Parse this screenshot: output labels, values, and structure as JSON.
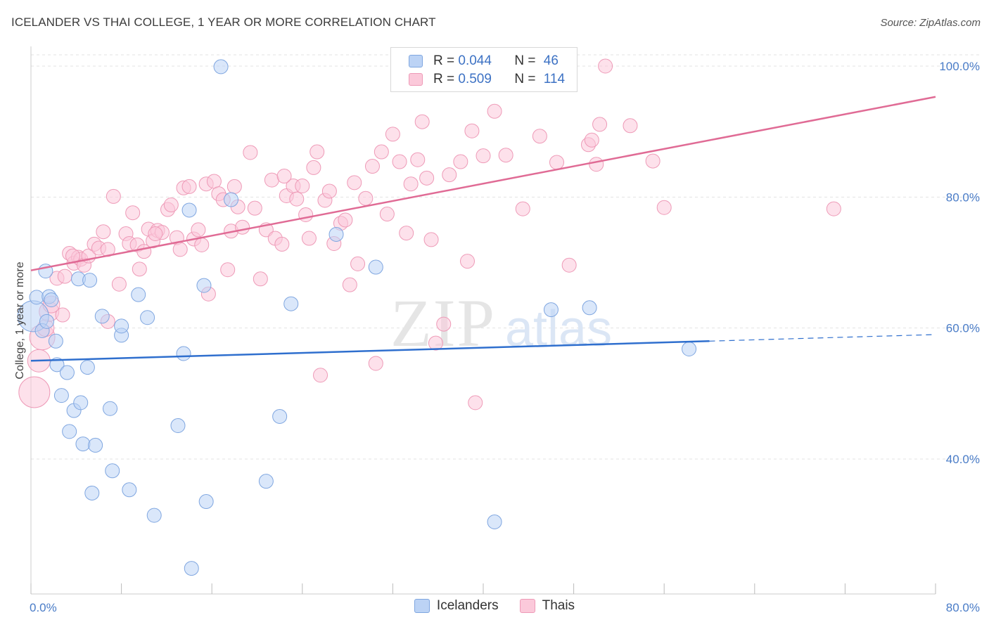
{
  "header": {
    "title": "ICELANDER VS THAI COLLEGE, 1 YEAR OR MORE CORRELATION CHART",
    "source": "Source: ZipAtlas.com"
  },
  "legend": {
    "rows": [
      {
        "r_label": "R = ",
        "r_value": "0.044",
        "n_label": "N = ",
        "n_value": "46"
      },
      {
        "r_label": "R = ",
        "r_value": "0.509",
        "n_label": "N = ",
        "n_value": "114"
      }
    ],
    "bottom": [
      "Icelanders",
      "Thais"
    ]
  },
  "watermark": {
    "zip": "ZIP",
    "atlas": "atlas"
  },
  "colors": {
    "blue_fill": "#bcd3f5",
    "blue_stroke": "#7fa6e0",
    "blue_line": "#2f6fce",
    "pink_fill": "#fbc9da",
    "pink_stroke": "#ee9ab7",
    "pink_line": "#e06b95",
    "grid": "#e3e3e3",
    "tick_text": "#4a7cc7"
  },
  "chart_data": {
    "type": "scatter",
    "title": "ICELANDER VS THAI COLLEGE, 1 YEAR OR MORE CORRELATION CHART",
    "xlabel": "",
    "ylabel": "College, 1 year or more",
    "xlim": [
      0,
      80
    ],
    "ylim": [
      20,
      100
    ],
    "x_tick_labels": [
      "0.0%",
      "80.0%"
    ],
    "y_tick_labels": [
      "100.0%",
      "80.0%",
      "60.0%",
      "40.0%"
    ],
    "y_ticks": [
      100,
      80,
      60,
      40
    ],
    "series": [
      {
        "name": "Icelanders",
        "r": 0.044,
        "n": 46,
        "trend": {
          "x0": 0,
          "y0": 55.0,
          "x1": 60,
          "y1": 58.0,
          "dash_to_x": 80,
          "dash_y": 59.0
        },
        "points": [
          [
            0.2,
            61.8
          ],
          [
            0.5,
            64.7
          ],
          [
            1.0,
            59.6
          ],
          [
            1.3,
            68.7
          ],
          [
            1.6,
            64.8
          ],
          [
            1.8,
            64.3
          ],
          [
            2.2,
            58.0
          ],
          [
            2.3,
            54.4
          ],
          [
            2.7,
            49.7
          ],
          [
            3.2,
            53.2
          ],
          [
            3.4,
            44.2
          ],
          [
            3.8,
            47.4
          ],
          [
            4.2,
            67.5
          ],
          [
            4.4,
            48.6
          ],
          [
            4.6,
            42.3
          ],
          [
            5.0,
            54.0
          ],
          [
            5.2,
            67.3
          ],
          [
            5.4,
            34.8
          ],
          [
            5.7,
            42.1
          ],
          [
            6.3,
            61.8
          ],
          [
            7.0,
            47.7
          ],
          [
            7.2,
            38.2
          ],
          [
            8.0,
            58.9
          ],
          [
            8.0,
            60.3
          ],
          [
            8.7,
            35.3
          ],
          [
            9.5,
            65.1
          ],
          [
            10.3,
            61.6
          ],
          [
            10.9,
            31.4
          ],
          [
            13.0,
            45.1
          ],
          [
            13.5,
            56.1
          ],
          [
            14.0,
            78.0
          ],
          [
            14.2,
            23.3
          ],
          [
            15.3,
            66.5
          ],
          [
            15.5,
            33.5
          ],
          [
            16.8,
            99.9
          ],
          [
            17.7,
            79.6
          ],
          [
            20.8,
            36.6
          ],
          [
            22.0,
            46.5
          ],
          [
            23.0,
            63.7
          ],
          [
            27.0,
            74.3
          ],
          [
            30.5,
            69.3
          ],
          [
            41.0,
            30.4
          ],
          [
            46.0,
            62.8
          ],
          [
            49.4,
            63.1
          ],
          [
            58.2,
            56.8
          ],
          [
            1.4,
            61.0
          ]
        ],
        "sizes": [
          22,
          10,
          10,
          10,
          10,
          10,
          10,
          10,
          10,
          10,
          10,
          10,
          10,
          10,
          10,
          10,
          10,
          10,
          10,
          10,
          10,
          10,
          10,
          10,
          10,
          10,
          10,
          10,
          10,
          10,
          10,
          10,
          10,
          10,
          10,
          10,
          10,
          10,
          10,
          10,
          10,
          10,
          10,
          10,
          10,
          10
        ]
      },
      {
        "name": "Thais",
        "r": 0.509,
        "n": 114,
        "trend": {
          "x0": 0,
          "y0": 68.8,
          "x1": 80,
          "y1": 95.3
        },
        "points": [
          [
            0.3,
            50.2
          ],
          [
            0.7,
            55.0
          ],
          [
            1.0,
            58.6
          ],
          [
            1.3,
            60.0
          ],
          [
            1.6,
            62.5
          ],
          [
            1.8,
            63.6
          ],
          [
            2.3,
            67.6
          ],
          [
            2.8,
            62.0
          ],
          [
            3.0,
            67.9
          ],
          [
            3.4,
            71.4
          ],
          [
            3.8,
            69.9
          ],
          [
            4.2,
            70.8
          ],
          [
            4.4,
            70.5
          ],
          [
            4.7,
            69.6
          ],
          [
            5.1,
            71.0
          ],
          [
            5.6,
            72.8
          ],
          [
            6.0,
            72.2
          ],
          [
            6.4,
            74.7
          ],
          [
            6.8,
            72.0
          ],
          [
            7.3,
            80.1
          ],
          [
            7.8,
            66.7
          ],
          [
            8.4,
            74.4
          ],
          [
            8.7,
            72.9
          ],
          [
            9.0,
            77.6
          ],
          [
            9.4,
            72.7
          ],
          [
            9.6,
            69.0
          ],
          [
            10.0,
            71.7
          ],
          [
            10.4,
            75.1
          ],
          [
            10.8,
            73.3
          ],
          [
            11.2,
            74.9
          ],
          [
            11.6,
            74.6
          ],
          [
            12.1,
            78.1
          ],
          [
            12.4,
            78.8
          ],
          [
            12.9,
            73.8
          ],
          [
            13.2,
            72.0
          ],
          [
            13.5,
            81.4
          ],
          [
            14.0,
            81.6
          ],
          [
            14.4,
            73.6
          ],
          [
            14.8,
            75.0
          ],
          [
            15.1,
            72.7
          ],
          [
            15.5,
            82.0
          ],
          [
            15.7,
            65.2
          ],
          [
            16.2,
            82.4
          ],
          [
            16.6,
            80.5
          ],
          [
            17.0,
            79.6
          ],
          [
            17.4,
            68.9
          ],
          [
            17.7,
            74.8
          ],
          [
            18.0,
            81.6
          ],
          [
            18.3,
            78.5
          ],
          [
            18.7,
            75.4
          ],
          [
            19.4,
            86.8
          ],
          [
            19.8,
            78.3
          ],
          [
            20.3,
            67.5
          ],
          [
            20.8,
            75.0
          ],
          [
            21.3,
            82.6
          ],
          [
            21.6,
            73.7
          ],
          [
            22.2,
            72.8
          ],
          [
            22.6,
            80.2
          ],
          [
            23.2,
            81.7
          ],
          [
            23.5,
            79.7
          ],
          [
            24.0,
            81.7
          ],
          [
            24.3,
            77.3
          ],
          [
            24.6,
            73.7
          ],
          [
            25.0,
            84.5
          ],
          [
            25.3,
            86.9
          ],
          [
            25.6,
            52.8
          ],
          [
            26.0,
            79.5
          ],
          [
            26.4,
            80.9
          ],
          [
            26.8,
            72.9
          ],
          [
            27.4,
            76.0
          ],
          [
            27.8,
            76.5
          ],
          [
            28.2,
            66.6
          ],
          [
            28.6,
            82.2
          ],
          [
            28.9,
            69.8
          ],
          [
            29.6,
            79.8
          ],
          [
            30.2,
            84.7
          ],
          [
            30.5,
            54.6
          ],
          [
            31.0,
            86.9
          ],
          [
            31.5,
            77.4
          ],
          [
            32.0,
            89.6
          ],
          [
            32.6,
            85.4
          ],
          [
            33.2,
            74.5
          ],
          [
            33.6,
            82.0
          ],
          [
            34.2,
            85.7
          ],
          [
            34.6,
            91.5
          ],
          [
            35.0,
            82.9
          ],
          [
            35.4,
            73.5
          ],
          [
            35.8,
            57.7
          ],
          [
            36.5,
            60.6
          ],
          [
            37.0,
            83.4
          ],
          [
            38.0,
            85.4
          ],
          [
            38.6,
            70.2
          ],
          [
            39.0,
            90.1
          ],
          [
            39.3,
            48.6
          ],
          [
            40.0,
            86.3
          ],
          [
            41.0,
            93.1
          ],
          [
            42.0,
            86.4
          ],
          [
            43.5,
            78.2
          ],
          [
            45.0,
            89.3
          ],
          [
            46.5,
            85.3
          ],
          [
            47.6,
            69.6
          ],
          [
            49.3,
            88.0
          ],
          [
            49.6,
            88.7
          ],
          [
            50.0,
            85.0
          ],
          [
            50.3,
            91.1
          ],
          [
            50.8,
            100.0
          ],
          [
            53.0,
            90.9
          ],
          [
            55.0,
            85.5
          ],
          [
            56.0,
            78.4
          ],
          [
            71.0,
            78.2
          ],
          [
            3.7,
            71.0
          ],
          [
            11.0,
            74.4
          ],
          [
            6.8,
            61.0
          ],
          [
            22.4,
            83.2
          ]
        ],
        "sizes": [
          22,
          16,
          18,
          12,
          14,
          12,
          10,
          10,
          10,
          10,
          10,
          10,
          10,
          10,
          10,
          10,
          10,
          10,
          10,
          10,
          10,
          10,
          10,
          10,
          10,
          10,
          10,
          10,
          10,
          10,
          10,
          10,
          10,
          10,
          10,
          10,
          10,
          10,
          10,
          10,
          10,
          10,
          10,
          10,
          10,
          10,
          10,
          10,
          10,
          10,
          10,
          10,
          10,
          10,
          10,
          10,
          10,
          10,
          10,
          10,
          10,
          10,
          10,
          10,
          10,
          10,
          10,
          10,
          10,
          10,
          10,
          10,
          10,
          10,
          10,
          10,
          10,
          10,
          10,
          10,
          10,
          10,
          10,
          10,
          10,
          10,
          10,
          10,
          10,
          10,
          10,
          10,
          10,
          10,
          10,
          10,
          10,
          10,
          10,
          10,
          10,
          10,
          10,
          10,
          10,
          10,
          10,
          10,
          10,
          10,
          10,
          10,
          10,
          10
        ]
      }
    ]
  }
}
